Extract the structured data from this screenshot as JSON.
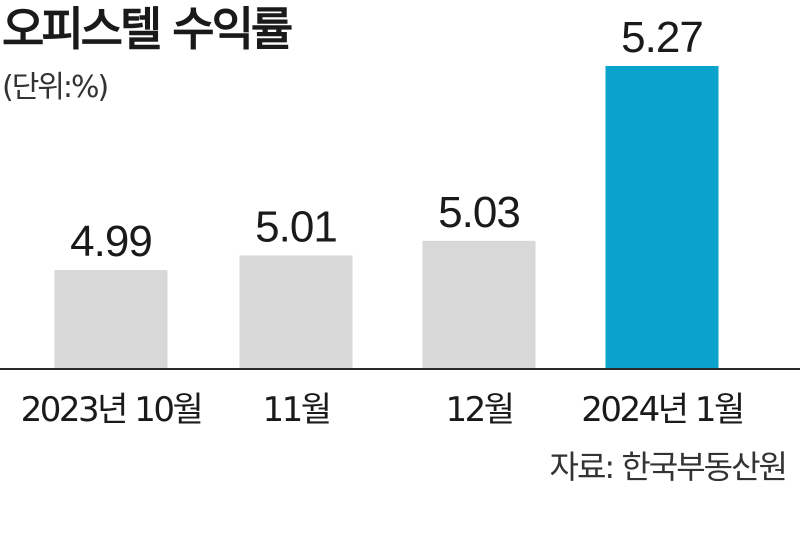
{
  "title": "오피스텔 수익률",
  "unit": "(단위:%)",
  "source": "자료: 한국부동산원",
  "colors": {
    "default_bar": "#d8d8d8",
    "highlight_bar": "#0aa3cc",
    "baseline": "#2a2a2a"
  },
  "chart_data": {
    "type": "bar",
    "categories": [
      "2023년 10월",
      "11월",
      "12월",
      "2024년 1월"
    ],
    "values": [
      4.99,
      5.01,
      5.03,
      5.27
    ],
    "value_labels": [
      "4.99",
      "5.01",
      "5.03",
      "5.27"
    ],
    "highlight_index": 3,
    "grid": false,
    "legend": "none"
  }
}
